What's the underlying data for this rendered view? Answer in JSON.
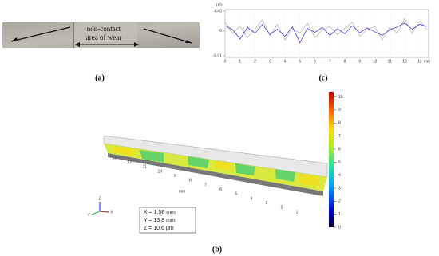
{
  "figure": {
    "label_a": "(a)",
    "label_b": "(b)",
    "label_c": "(c)"
  },
  "photo": {
    "text_line1": "non-contact",
    "text_line2": "area of wear"
  },
  "chart_data": [
    {
      "type": "line",
      "y_unit": "μm",
      "x_unit": "mm",
      "x": [
        0,
        0.5,
        1,
        1.5,
        2,
        2.5,
        3,
        3.5,
        4,
        4.5,
        5,
        5.5,
        6,
        6.5,
        7,
        7.5,
        8,
        8.5,
        9,
        9.5,
        10,
        10.5,
        11,
        11.5,
        12,
        12.5,
        13,
        13.5
      ],
      "series": [
        {
          "color": "#b0b0b0",
          "values": [
            2.0,
            -0.5,
            1.0,
            -1.5,
            0.5,
            2.5,
            -1.0,
            1.5,
            -2.0,
            0.5,
            -0.5,
            1.8,
            -1.5,
            0.2,
            1.0,
            -0.8,
            0.6,
            2.0,
            -1.2,
            0.3,
            1.0,
            -2.0,
            0.8,
            -0.5,
            2.8,
            -0.6,
            2.2,
            0.3
          ]
        },
        {
          "color": "#2a2ad0",
          "values": [
            1.2,
            0.3,
            -1.8,
            0.8,
            -0.5,
            1.5,
            -0.8,
            0.4,
            -1.2,
            0.9,
            -2.6,
            0.6,
            -0.3,
            0.8,
            -1.0,
            0.5,
            -0.6,
            1.2,
            -0.4,
            0.7,
            -0.2,
            -1.0,
            0.3,
            0.9,
            1.8,
            0.4,
            1.5,
            1.0
          ]
        }
      ],
      "xlim": [
        0,
        13.6
      ],
      "xticks": [
        0,
        1,
        2,
        3,
        4,
        5,
        6,
        7,
        8,
        9,
        10,
        11,
        12,
        13
      ],
      "ylim": [
        -5.51,
        4.4
      ],
      "yticks": [
        {
          "value": 4.4,
          "label": "4.40"
        },
        0,
        -5.51
      ],
      "grid": true
    },
    {
      "type": "surface3d",
      "clim": [
        0,
        10.4
      ],
      "cticks": [
        0,
        1,
        2,
        3,
        4,
        5,
        6,
        7,
        8,
        9,
        10
      ],
      "axis_ticks": [
        "13",
        "12",
        "11",
        "10",
        "9",
        "8",
        "7",
        "6",
        "5",
        "4",
        "3",
        "2",
        "1"
      ],
      "axis_unit": "mm",
      "info": [
        "X = 1.58 mm",
        "Y = 13.8 mm",
        "Z = 10.6 μm"
      ],
      "triad": [
        "Z",
        "Y",
        "X"
      ]
    }
  ]
}
